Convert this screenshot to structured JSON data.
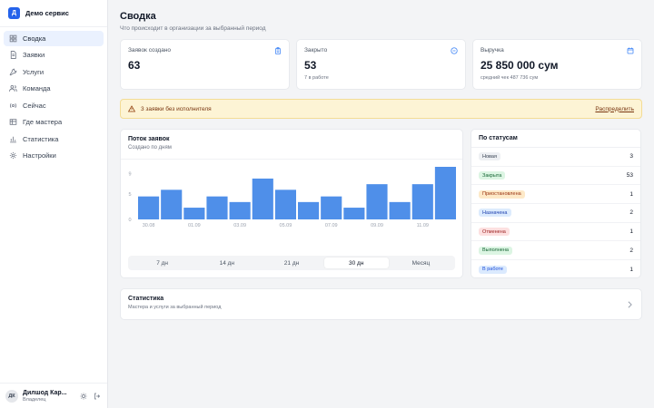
{
  "brand": {
    "logo_letter": "Д",
    "name": "Демо сервис",
    "accent": "#2563eb"
  },
  "nav": [
    {
      "label": "Сводка",
      "icon": "dashboard-icon",
      "active": true
    },
    {
      "label": "Заявки",
      "icon": "document-icon",
      "active": false
    },
    {
      "label": "Услуги",
      "icon": "wrench-icon",
      "active": false
    },
    {
      "label": "Команда",
      "icon": "users-icon",
      "active": false
    },
    {
      "label": "Сейчас",
      "icon": "radio-icon",
      "active": false
    },
    {
      "label": "Где мастера",
      "icon": "map-icon",
      "active": false
    },
    {
      "label": "Статистика",
      "icon": "bar-chart-icon",
      "active": false
    },
    {
      "label": "Настройки",
      "icon": "gear-icon",
      "active": false
    }
  ],
  "user": {
    "initials": "ДК",
    "name": "Дилшод Кар...",
    "role": "Владелец"
  },
  "header": {
    "title": "Сводка",
    "subtitle": "Что происходит в организации за выбранный период"
  },
  "kpis": [
    {
      "label": "Заявок создано",
      "value": "63",
      "note": "",
      "icon": "clipboard-icon"
    },
    {
      "label": "Закрыто",
      "value": "53",
      "note": "7 в работе",
      "icon": "check-circle-icon"
    },
    {
      "label": "Выручка",
      "value": "25 850 000 сум",
      "note": "средний чек 487 736 сум",
      "icon": "wallet-icon"
    }
  ],
  "alert": {
    "text": "3 заявки без исполнителя",
    "link": "Распределить",
    "icon": "warning-icon"
  },
  "flow": {
    "title": "Поток заявок",
    "subtitle": "Создано по дням",
    "ranges": [
      {
        "label": "7 дн",
        "active": false
      },
      {
        "label": "14 дн",
        "active": false
      },
      {
        "label": "21 дн",
        "active": false
      },
      {
        "label": "30 дн",
        "active": true
      },
      {
        "label": "Месяц",
        "active": false
      }
    ]
  },
  "chart_data": {
    "type": "bar",
    "categories": [
      "30.08",
      "31.08",
      "01.09",
      "02.09",
      "03.09",
      "04.09",
      "05.09",
      "06.09",
      "07.09",
      "08.09",
      "09.09",
      "10.09",
      "11.09",
      "12.09"
    ],
    "x_tick_labels": [
      "30.08",
      "01.09",
      "03.09",
      "05.09",
      "07.09",
      "09.09",
      "11.09"
    ],
    "values": [
      4.5,
      5.8,
      2.3,
      4.5,
      3.4,
      8.0,
      5.8,
      3.4,
      4.5,
      2.3,
      6.9,
      3.4,
      6.9,
      10.3
    ],
    "y_ticks": [
      0,
      5,
      9
    ],
    "ylim": [
      0,
      10.3
    ],
    "bar_color": "#4f8fe9",
    "grid": false
  },
  "statuses": {
    "title": "По статусам",
    "items": [
      {
        "label": "Новая",
        "count": "3",
        "bg": "#eef0f3",
        "fg": "#374151"
      },
      {
        "label": "Закрыта",
        "count": "53",
        "bg": "#dcf5e3",
        "fg": "#166534"
      },
      {
        "label": "Приостановлена",
        "count": "1",
        "bg": "#fde9c8",
        "fg": "#9a3412"
      },
      {
        "label": "Назначена",
        "count": "2",
        "bg": "#dcebfd",
        "fg": "#1e40af"
      },
      {
        "label": "Отменена",
        "count": "1",
        "bg": "#fde0e0",
        "fg": "#991b1b"
      },
      {
        "label": "Выполнена",
        "count": "2",
        "bg": "#dcf5e3",
        "fg": "#166534"
      },
      {
        "label": "В работе",
        "count": "1",
        "bg": "#dbeafe",
        "fg": "#1d4ed8"
      }
    ]
  },
  "stats_card": {
    "title": "Статистика",
    "subtitle": "Мастера и услуги за выбранный период"
  }
}
